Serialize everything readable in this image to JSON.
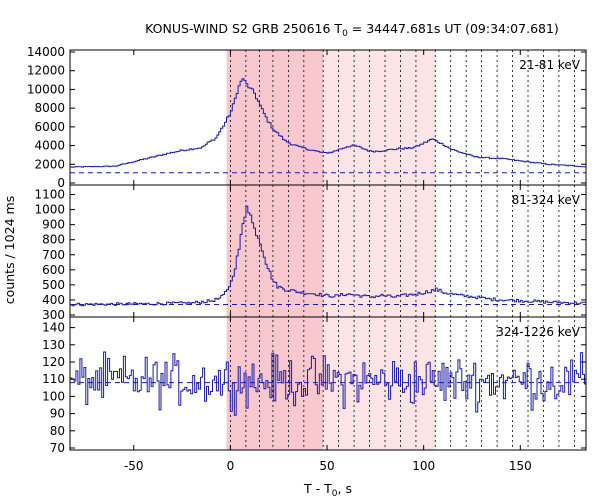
{
  "chart_data": {
    "type": "line",
    "title_main": "KONUS-WIND S2 GRB 250616 T",
    "title_sub": "0",
    "title_rest": " = 34447.681s UT (09:34:07.681)",
    "xlabel_main": "T - T",
    "xlabel_sub": "0",
    "xlabel_rest": ", s",
    "ylabel": "counts / 1024 ms",
    "xlim": [
      -83,
      184
    ],
    "xticks": [
      "-50",
      "0",
      "50",
      "100",
      "150"
    ],
    "xtick_values": [
      -50,
      0,
      50,
      100,
      150
    ],
    "highlight_regions": [
      {
        "x": [
          -2,
          48
        ],
        "color": "#f9c8cf"
      },
      {
        "x": [
          48,
          106
        ],
        "color": "#fde4e6"
      }
    ],
    "spectrum_boundaries": [
      0,
      8,
      15,
      22,
      30,
      38,
      48,
      56,
      64,
      72,
      80,
      88,
      96,
      106,
      114,
      122,
      130,
      138,
      146,
      154,
      162,
      170,
      178
    ],
    "line_color": "#1a1aa6",
    "panels": [
      {
        "name": "21-81 keV",
        "ylim": [
          0,
          14000
        ],
        "yticks": [
          "0",
          "2000",
          "4000",
          "6000",
          "8000",
          "10000",
          "12000",
          "14000"
        ],
        "ytick_values": [
          0,
          2000,
          4000,
          6000,
          8000,
          10000,
          12000,
          14000
        ],
        "background": 1100,
        "x": [
          -83,
          -60,
          -32,
          -25,
          -15,
          -12,
          -8,
          -5,
          -3,
          -1,
          0,
          1,
          2,
          3,
          4,
          5,
          6,
          7,
          8,
          9,
          10,
          12,
          14,
          16,
          18,
          20,
          22,
          25,
          28,
          32,
          36,
          40,
          44,
          48,
          52,
          56,
          60,
          64,
          68,
          72,
          76,
          80,
          84,
          88,
          92,
          96,
          100,
          104,
          106,
          110,
          114,
          120,
          126,
          132,
          140,
          148,
          156,
          164,
          172,
          180,
          184
        ],
        "y": [
          1700,
          1800,
          3200,
          3500,
          3800,
          4300,
          4800,
          5800,
          6500,
          7300,
          7700,
          8300,
          9000,
          9800,
          10300,
          10800,
          11200,
          10800,
          10500,
          10300,
          10000,
          9600,
          8700,
          7800,
          7000,
          6300,
          5700,
          5100,
          4500,
          4100,
          3800,
          3600,
          3400,
          3200,
          3300,
          3600,
          3900,
          4000,
          3700,
          3400,
          3400,
          3500,
          3600,
          3700,
          3700,
          3900,
          4300,
          4700,
          4500,
          4100,
          3600,
          3200,
          2800,
          2700,
          2600,
          2400,
          2200,
          2000,
          1900,
          1800,
          1700
        ]
      },
      {
        "name": "81-324 keV",
        "ylim": [
          300,
          1150
        ],
        "yticks": [
          "300",
          "400",
          "500",
          "600",
          "700",
          "800",
          "900",
          "1000",
          "1100"
        ],
        "ytick_values": [
          300,
          400,
          500,
          600,
          700,
          800,
          900,
          1000,
          1100
        ],
        "background": 370,
        "x": [
          -83,
          -60,
          -40,
          -20,
          -10,
          -6,
          -4,
          -2,
          0,
          1,
          2,
          3,
          4,
          5,
          6,
          7,
          8,
          9,
          10,
          11,
          12,
          14,
          16,
          18,
          20,
          22,
          24,
          28,
          32,
          36,
          40,
          44,
          48,
          54,
          60,
          66,
          72,
          78,
          84,
          90,
          96,
          102,
          106,
          110,
          118,
          126,
          134,
          142,
          150,
          158,
          166,
          174,
          184
        ],
        "y": [
          370,
          372,
          375,
          380,
          395,
          410,
          430,
          470,
          520,
          570,
          620,
          680,
          740,
          820,
          900,
          960,
          1040,
          1000,
          960,
          910,
          870,
          820,
          740,
          650,
          580,
          520,
          490,
          470,
          460,
          450,
          445,
          440,
          430,
          425,
          440,
          430,
          420,
          430,
          420,
          430,
          440,
          455,
          470,
          450,
          430,
          420,
          405,
          400,
          395,
          390,
          385,
          382,
          378
        ]
      },
      {
        "name": "324-1226 keV",
        "ylim": [
          70,
          145
        ],
        "yticks": [
          "70",
          "80",
          "90",
          "100",
          "110",
          "120",
          "130",
          "140"
        ],
        "ytick_values": [
          70,
          80,
          90,
          100,
          110,
          120,
          130,
          140
        ],
        "background": 108,
        "noise_level": 109,
        "noise_amplitude": 14
      }
    ]
  }
}
